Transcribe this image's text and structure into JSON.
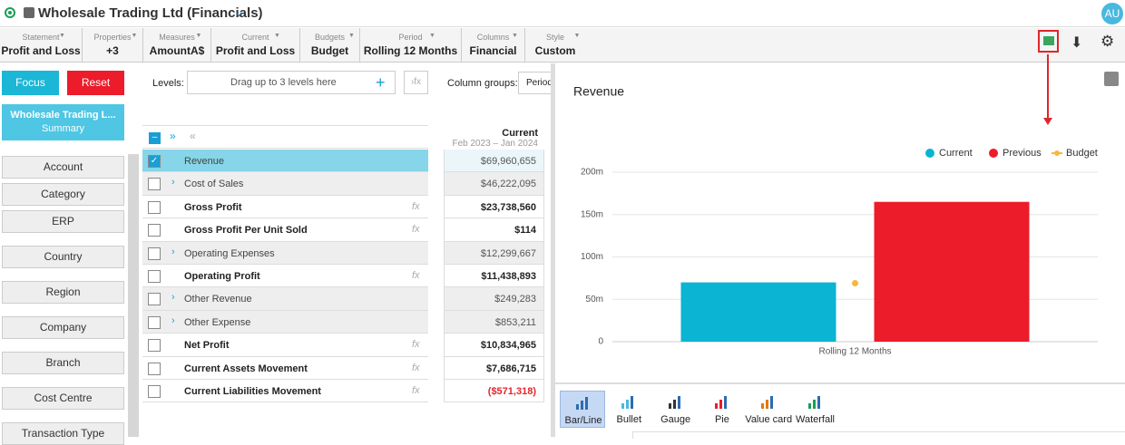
{
  "header": {
    "title": "Wholesale Trading Ltd (Financials)",
    "avatar": "AU"
  },
  "toolbar": [
    {
      "label": "Statement",
      "value": "Profit and Loss"
    },
    {
      "label": "Properties",
      "value": "+3"
    },
    {
      "label": "Measures",
      "value": "AmountA$"
    },
    {
      "label": "Current",
      "value": "Profit and Loss"
    },
    {
      "label": "Budgets",
      "value": "Budget"
    },
    {
      "label": "Period",
      "value": "Rolling 12 Months"
    },
    {
      "label": "Columns",
      "value": "Financial"
    },
    {
      "label": "Style",
      "value": "Custom"
    }
  ],
  "left_panel": {
    "focus": "Focus",
    "reset": "Reset",
    "node": {
      "title": "Wholesale Trading L...",
      "subtitle": "Summary"
    },
    "dimensions": [
      "Account",
      "Category",
      "ERP",
      "Country",
      "Region",
      "Company",
      "Branch",
      "Cost Centre",
      "Transaction Type"
    ]
  },
  "levels": {
    "label": "Levels:",
    "placeholder": "Drag up to 3 levels here",
    "column_groups_label": "Column groups:",
    "column_group": "Period"
  },
  "table": {
    "column": {
      "title": "Current",
      "subtitle": "Feb 2023 – Jan 2024"
    },
    "formula_icon": "fx",
    "rows": [
      {
        "name": "Revenue",
        "value": "$69,960,655",
        "bold": false,
        "expandable": false,
        "fx": false,
        "selected": true
      },
      {
        "name": "Cost of Sales",
        "value": "$46,222,095",
        "bold": false,
        "expandable": true,
        "fx": false
      },
      {
        "name": "Gross Profit",
        "value": "$23,738,560",
        "bold": true,
        "expandable": false,
        "fx": true
      },
      {
        "name": "Gross Profit Per Unit Sold",
        "value": "$114",
        "bold": true,
        "expandable": false,
        "fx": true
      },
      {
        "name": "Operating Expenses",
        "value": "$12,299,667",
        "bold": false,
        "expandable": true,
        "fx": false
      },
      {
        "name": "Operating Profit",
        "value": "$11,438,893",
        "bold": true,
        "expandable": false,
        "fx": true
      },
      {
        "name": "Other Revenue",
        "value": "$249,283",
        "bold": false,
        "expandable": true,
        "fx": false
      },
      {
        "name": "Other Expense",
        "value": "$853,211",
        "bold": false,
        "expandable": true,
        "fx": false
      },
      {
        "name": "Net Profit",
        "value": "$10,834,965",
        "bold": true,
        "expandable": false,
        "fx": true
      },
      {
        "name": "Current Assets Movement",
        "value": "$7,686,715",
        "bold": true,
        "expandable": false,
        "fx": true
      },
      {
        "name": "Current Liabilities Movement",
        "value": "($571,318)",
        "bold": true,
        "expandable": false,
        "fx": true,
        "value_color": "#e0262b"
      }
    ]
  },
  "chart_data": {
    "type": "bar",
    "title": "Revenue",
    "categories": [
      "Rolling 12 Months"
    ],
    "series": [
      {
        "name": "Current",
        "color": "#0ab4d2",
        "values": [
          69960655
        ]
      },
      {
        "name": "Previous",
        "color": "#ec1c2a",
        "values": [
          165000000
        ]
      },
      {
        "name": "Budget",
        "color": "#f6b73c",
        "values": [
          69000000
        ],
        "type": "line"
      }
    ],
    "ylim": [
      0,
      200000000
    ],
    "yticks": [
      0,
      {
        "value": 50000000,
        "label": "50m"
      },
      {
        "value": 100000000,
        "label": "100m"
      },
      {
        "value": 150000000,
        "label": "150m"
      },
      {
        "value": 200000000,
        "label": "200m"
      }
    ],
    "grid": true,
    "legend": "top-right"
  },
  "chart_types": [
    "Bar/Line",
    "Bullet",
    "Gauge",
    "Pie",
    "Value card",
    "Waterfall"
  ],
  "selected_chart_type": 0
}
